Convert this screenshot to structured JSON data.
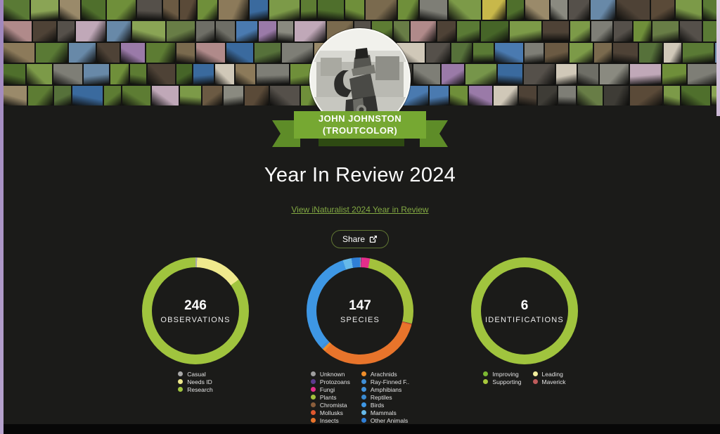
{
  "profile": {
    "name_line1": "JOHN JOHNSTON",
    "name_line2": "(TROUTCOLOR)"
  },
  "header": {
    "title": "Year In Review 2024",
    "review_link": "View iNaturalist 2024 Year in Review",
    "share_label": "Share"
  },
  "icons": {
    "share": "external-link-icon",
    "avatar": "moka-pot-drawing"
  },
  "colors": {
    "background": "#1b1b19",
    "accent_green": "#a0c43e",
    "link_green": "#83a943",
    "ribbon_green": "#76a832",
    "ribbon_dark_green": "#5e8c28"
  },
  "chart_data": [
    {
      "type": "pie",
      "variant": "donut",
      "center_value": "246",
      "center_label": "OBSERVATIONS",
      "series": [
        {
          "name": "Casual",
          "color": "#a8a8a8",
          "percent": 0.5
        },
        {
          "name": "Needs ID",
          "color": "#efe98d",
          "percent": 14.5
        },
        {
          "name": "Research",
          "color": "#a0c43e",
          "percent": 85.0
        }
      ],
      "legend_columns": [
        [
          {
            "label": "Casual",
            "color": "#a8a8a8"
          },
          {
            "label": "Needs ID",
            "color": "#efe98d"
          },
          {
            "label": "Research",
            "color": "#a0c43e"
          }
        ]
      ]
    },
    {
      "type": "pie",
      "variant": "donut",
      "center_value": "147",
      "center_label": "SPECIES",
      "series": [
        {
          "name": "Unknown",
          "color": "#9e9e9e",
          "percent": 0.2
        },
        {
          "name": "Protozoans",
          "color": "#5d3a8e",
          "percent": 0.2
        },
        {
          "name": "Fungi",
          "color": "#e62e8b",
          "percent": 2.6
        },
        {
          "name": "Plants",
          "color": "#a3c13c",
          "percent": 25.8
        },
        {
          "name": "Chromista",
          "color": "#8a5d3b",
          "percent": 0.2
        },
        {
          "name": "Mollusks",
          "color": "#df582e",
          "percent": 0.3
        },
        {
          "name": "Insects",
          "color": "#e8742b",
          "percent": 32.2
        },
        {
          "name": "Arachnids",
          "color": "#ef8d2a",
          "percent": 0.8
        },
        {
          "name": "Ray-Finned Fishes",
          "color": "#3f8fd8",
          "percent": 0.3
        },
        {
          "name": "Amphibians",
          "color": "#4192dc",
          "percent": 0.2
        },
        {
          "name": "Reptiles",
          "color": "#3a8ad2",
          "percent": 0.2
        },
        {
          "name": "Birds",
          "color": "#3e97e4",
          "percent": 31.8
        },
        {
          "name": "Mammals",
          "color": "#66b9e9",
          "percent": 2.6
        },
        {
          "name": "Other Animals",
          "color": "#2f7fd6",
          "percent": 2.6
        }
      ],
      "legend_columns": [
        [
          {
            "label": "Unknown",
            "color": "#9e9e9e"
          },
          {
            "label": "Protozoans",
            "color": "#5d3a8e"
          },
          {
            "label": "Fungi",
            "color": "#e62e8b"
          },
          {
            "label": "Plants",
            "color": "#a3c13c"
          },
          {
            "label": "Chromista",
            "color": "#8a5d3b"
          },
          {
            "label": "Mollusks",
            "color": "#df582e"
          },
          {
            "label": "Insects",
            "color": "#e8742b"
          }
        ],
        [
          {
            "label": "Arachnids",
            "color": "#ef8d2a"
          },
          {
            "label": "Ray-Finned F..",
            "color": "#3f8fd8"
          },
          {
            "label": "Amphibians",
            "color": "#4192dc"
          },
          {
            "label": "Reptiles",
            "color": "#3a8ad2"
          },
          {
            "label": "Birds",
            "color": "#3e97e4"
          },
          {
            "label": "Mammals",
            "color": "#66b9e9"
          },
          {
            "label": "Other Animals",
            "color": "#2f7fd6"
          }
        ]
      ]
    },
    {
      "type": "pie",
      "variant": "donut",
      "center_value": "6",
      "center_label": "IDENTIFICATIONS",
      "series": [
        {
          "name": "Improving",
          "color": "#7cb832",
          "percent": 0
        },
        {
          "name": "Supporting",
          "color": "#a0c43e",
          "percent": 100
        },
        {
          "name": "Leading",
          "color": "#f2ee9d",
          "percent": 0
        },
        {
          "name": "Maverick",
          "color": "#bf5b5b",
          "percent": 0
        }
      ],
      "legend_columns": [
        [
          {
            "label": "Improving",
            "color": "#7cb832"
          },
          {
            "label": "Supporting",
            "color": "#a8c83c"
          }
        ],
        [
          {
            "label": "Leading",
            "color": "#f2ee9d"
          },
          {
            "label": "Maverick",
            "color": "#bf5b5b"
          }
        ]
      ]
    }
  ],
  "mosaic_palette": [
    "#4f6f2c",
    "#5d7c33",
    "#6f8f3a",
    "#7c9a48",
    "#56713a",
    "#3f5d26",
    "#8aa455",
    "#687d46",
    "#4f6f2c",
    "#5d7c33",
    "#6f8f3a",
    "#7c9a48",
    "#56713a",
    "#466528",
    "#76954a",
    "#5a7a35",
    "#6b5a43",
    "#7a6a4e",
    "#8c7a5a",
    "#4e4236",
    "#5a4a38",
    "#9a8a6a",
    "#6e6e66",
    "#7e7e76",
    "#55504a",
    "#8a8a80",
    "#3e3c36",
    "#4a7ab0",
    "#6889a8",
    "#3a6a9e",
    "#9a7aa8",
    "#c0a8b8",
    "#c8b84a",
    "#d0c8b8",
    "#b08a8a"
  ]
}
